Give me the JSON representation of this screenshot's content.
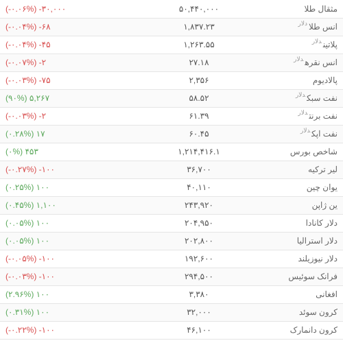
{
  "colors": {
    "neg": "#d84c4c",
    "pos": "#5aa85a",
    "text": "#555555",
    "border": "#e5e5e5"
  },
  "rows": [
    {
      "name": "مثقال طلا",
      "sup": "",
      "price": "۵۰,۴۴۰,۰۰۰",
      "change_val": "-۳۰,۰۰۰",
      "change_pct": "(-۰.۰۶%)",
      "dir": "neg"
    },
    {
      "name": "انس طلا",
      "sup": "دلار",
      "price": "۱,۸۳۷.۲۳",
      "change_val": "-۶۸",
      "change_pct": "(-۰.۰۴%)",
      "dir": "neg"
    },
    {
      "name": "پلاتین",
      "sup": "دلار",
      "price": "۱,۲۶۳.۵۵",
      "change_val": "-۴۵",
      "change_pct": "(-۰.۰۴%)",
      "dir": "neg"
    },
    {
      "name": "انس نقره",
      "sup": "دلار",
      "price": "۲۷.۱۸",
      "change_val": "-۲",
      "change_pct": "(-۰.۰۷%)",
      "dir": "neg"
    },
    {
      "name": "پالادیوم",
      "sup": "",
      "price": "۲,۳۵۶",
      "change_val": "-۷۵",
      "change_pct": "(-۰.۰۳%)",
      "dir": "neg"
    },
    {
      "name": "نفت سبک",
      "sup": "دلار",
      "price": "۵۸.۵۲",
      "change_val": "۵,۲۶۷",
      "change_pct": "(۹۰%)",
      "dir": "pos"
    },
    {
      "name": "نفت برنت",
      "sup": "دلار",
      "price": "۶۱.۳۹",
      "change_val": "-۲",
      "change_pct": "(-۰.۰۳%)",
      "dir": "neg"
    },
    {
      "name": "نفت اپک",
      "sup": "دلار",
      "price": "۶۰.۴۵",
      "change_val": "۱۷",
      "change_pct": "(۰.۲۸%)",
      "dir": "pos"
    },
    {
      "name": "شاخص بورس",
      "sup": "",
      "price": "۱,۲۱۴,۴۱۶.۱",
      "change_val": "۴۵۳",
      "change_pct": "(۰%)",
      "dir": "pos"
    },
    {
      "name": "لیر ترکیه",
      "sup": "",
      "price": "۳۶,۷۰۰",
      "change_val": "-۱۰۰",
      "change_pct": "(-۰.۲۷%)",
      "dir": "neg"
    },
    {
      "name": "یوان چین",
      "sup": "",
      "price": "۴۰,۱۱۰",
      "change_val": "۱۰۰",
      "change_pct": "(۰.۲۵%)",
      "dir": "pos"
    },
    {
      "name": "ین ژاپن",
      "sup": "",
      "price": "۲۴۳,۹۲۰",
      "change_val": "۱,۱۰۰",
      "change_pct": "(۰.۴۵%)",
      "dir": "pos"
    },
    {
      "name": "دلار کانادا",
      "sup": "",
      "price": "۲۰۴,۹۵۰",
      "change_val": "۱۰۰",
      "change_pct": "(۰.۰۵%)",
      "dir": "pos"
    },
    {
      "name": "دلار استرالیا",
      "sup": "",
      "price": "۲۰۲,۸۰۰",
      "change_val": "۱۰۰",
      "change_pct": "(۰.۰۵%)",
      "dir": "pos"
    },
    {
      "name": "دلار نیوزیلند",
      "sup": "",
      "price": "۱۹۲,۶۰۰",
      "change_val": "-۱۰۰",
      "change_pct": "(-۰.۰۵%)",
      "dir": "neg"
    },
    {
      "name": "فرانک سوئیس",
      "sup": "",
      "price": "۲۹۴,۵۰۰",
      "change_val": "-۱۰۰",
      "change_pct": "(-۰.۰۳%)",
      "dir": "neg"
    },
    {
      "name": "افغانی",
      "sup": "",
      "price": "۳,۳۸۰",
      "change_val": "۱۰۰",
      "change_pct": "(۲.۹۶%)",
      "dir": "pos"
    },
    {
      "name": "کرون سوئد",
      "sup": "",
      "price": "۳۲,۰۰۰",
      "change_val": "۱۰۰",
      "change_pct": "(۰.۳۱%)",
      "dir": "pos"
    },
    {
      "name": "کرون دانمارک",
      "sup": "",
      "price": "۴۶,۱۰۰",
      "change_val": "-۱۰۰",
      "change_pct": "(-۰.۲۲%)",
      "dir": "neg"
    }
  ]
}
